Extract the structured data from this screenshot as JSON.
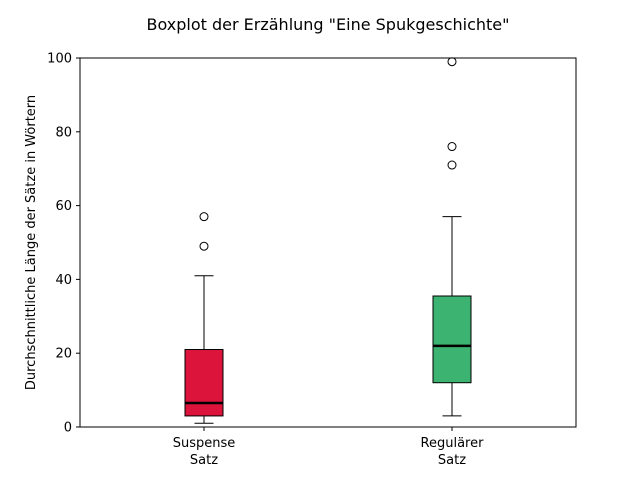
{
  "chart_data": {
    "type": "boxplot",
    "title": "Boxplot der Erzählung \"Eine Spukgeschichte\"",
    "xlabel": "",
    "ylabel": "Durchschnittliche Länge der Sätze in Wörtern",
    "ylim": [
      0,
      100
    ],
    "yticks": [
      0,
      20,
      40,
      60,
      80,
      100
    ],
    "grid": false,
    "categories": [
      {
        "line1": "Suspense",
        "line2": "Satz"
      },
      {
        "line1": "Regulärer",
        "line2": "Satz"
      }
    ],
    "boxes": [
      {
        "color": "#dc143c",
        "whisker_low": 1,
        "q1": 3,
        "median": 6.5,
        "q3": 21,
        "whisker_high": 41,
        "outliers": [
          49,
          57
        ]
      },
      {
        "color": "#3cb371",
        "whisker_low": 3,
        "q1": 12,
        "median": 22,
        "q3": 35.5,
        "whisker_high": 57,
        "outliers": [
          71,
          76,
          99
        ]
      }
    ]
  }
}
